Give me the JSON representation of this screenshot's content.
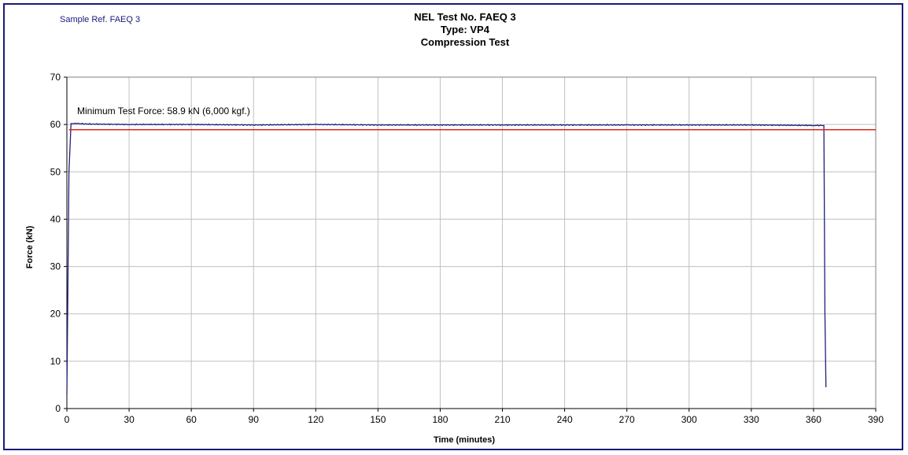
{
  "sample_ref": "Sample Ref. FAEQ 3",
  "chart_data": {
    "type": "line",
    "title": [
      "NEL Test No. FAEQ 3",
      "Type: VP4",
      "Compression Test"
    ],
    "xlabel": "Time (minutes)",
    "ylabel": "Force (kN)",
    "xlim": [
      0,
      390
    ],
    "ylim": [
      0,
      70
    ],
    "xticks": [
      0,
      30,
      60,
      90,
      120,
      150,
      180,
      210,
      240,
      270,
      300,
      330,
      360,
      390
    ],
    "yticks": [
      0,
      10,
      20,
      30,
      40,
      50,
      60,
      70
    ],
    "grid": true,
    "annotation": "Minimum Test Force: 58.9 kN (6,000 kgf.)",
    "series": [
      {
        "color": "#1f1f7a",
        "x": [
          0,
          1,
          2,
          5,
          10,
          30,
          60,
          90,
          120,
          150,
          180,
          210,
          240,
          270,
          300,
          330,
          360,
          365,
          365.5,
          366
        ],
        "y": [
          3,
          50,
          60.2,
          60.2,
          60.1,
          60.0,
          60.0,
          59.9,
          60.0,
          59.9,
          59.9,
          59.9,
          59.9,
          59.9,
          59.9,
          59.9,
          59.8,
          59.8,
          20,
          4.5
        ]
      },
      {
        "color": "#e0231c",
        "x": [
          1,
          390
        ],
        "y": [
          58.9,
          58.9
        ]
      }
    ]
  }
}
